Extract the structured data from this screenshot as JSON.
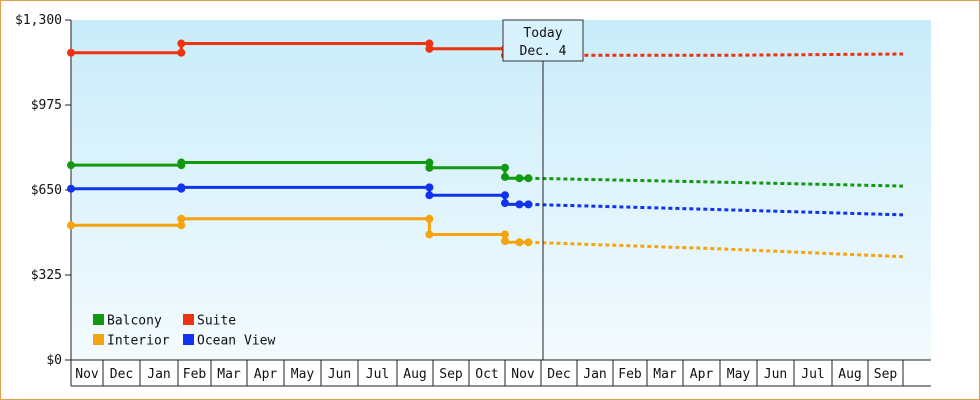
{
  "chart_data": {
    "type": "line",
    "today_label": "Today",
    "today_date": "Dec. 4",
    "months": [
      "Nov",
      "Dec",
      "Jan",
      "Feb",
      "Mar",
      "Apr",
      "May",
      "Jun",
      "Jul",
      "Aug",
      "Sep",
      "Oct",
      "Nov",
      "Dec",
      "Jan",
      "Feb",
      "Mar",
      "Apr",
      "May",
      "Jun",
      "Jul",
      "Aug",
      "Sep"
    ],
    "yticks": [
      {
        "value": 0,
        "label": "$0"
      },
      {
        "value": 325,
        "label": "$325"
      },
      {
        "value": 650,
        "label": "$650"
      },
      {
        "value": 975,
        "label": "$975"
      },
      {
        "value": 1300,
        "label": "$1,300"
      }
    ],
    "ylim": [
      0,
      1300
    ],
    "legend": [
      {
        "name": "Balcony",
        "color": "#119911"
      },
      {
        "name": "Suite",
        "color": "#ee3311"
      },
      {
        "name": "Interior",
        "color": "#f5a40f"
      },
      {
        "name": "Ocean View",
        "color": "#1133ee"
      }
    ],
    "series": [
      {
        "name": "Suite",
        "color": "#ee3311",
        "history": [
          [
            0,
            1175
          ],
          [
            3.1,
            1175
          ],
          [
            3.1,
            1210
          ],
          [
            9.9,
            1210
          ],
          [
            9.9,
            1190
          ],
          [
            12.0,
            1190
          ],
          [
            12.0,
            1165
          ],
          [
            12.65,
            1165
          ]
        ],
        "markers": [
          [
            0,
            1175
          ],
          [
            3.1,
            1175
          ],
          [
            3.1,
            1210
          ],
          [
            9.9,
            1210
          ],
          [
            9.9,
            1190
          ],
          [
            12.0,
            1190
          ],
          [
            12.0,
            1165
          ],
          [
            12.65,
            1165
          ]
        ],
        "forecast": [
          [
            12.65,
            1165
          ],
          [
            18.0,
            1165
          ],
          [
            23.0,
            1170
          ]
        ]
      },
      {
        "name": "Balcony",
        "color": "#119911",
        "history": [
          [
            0,
            745
          ],
          [
            3.1,
            745
          ],
          [
            3.1,
            755
          ],
          [
            9.9,
            755
          ],
          [
            9.9,
            735
          ],
          [
            12.0,
            735
          ],
          [
            12.0,
            695
          ],
          [
            12.65,
            695
          ]
        ],
        "markers": [
          [
            0,
            745
          ],
          [
            3.1,
            745
          ],
          [
            3.1,
            755
          ],
          [
            9.9,
            755
          ],
          [
            9.9,
            735
          ],
          [
            12.0,
            735
          ],
          [
            12.0,
            700
          ],
          [
            12.4,
            695
          ],
          [
            12.65,
            695
          ]
        ],
        "forecast": [
          [
            12.65,
            695
          ],
          [
            18.0,
            680
          ],
          [
            23.0,
            665
          ]
        ]
      },
      {
        "name": "Ocean View",
        "color": "#1133ee",
        "history": [
          [
            0,
            655
          ],
          [
            3.1,
            655
          ],
          [
            3.1,
            660
          ],
          [
            9.9,
            660
          ],
          [
            9.9,
            630
          ],
          [
            12.0,
            630
          ],
          [
            12.0,
            595
          ],
          [
            12.65,
            595
          ]
        ],
        "markers": [
          [
            0,
            655
          ],
          [
            3.1,
            655
          ],
          [
            3.1,
            660
          ],
          [
            9.9,
            660
          ],
          [
            9.9,
            630
          ],
          [
            12.0,
            630
          ],
          [
            12.0,
            600
          ],
          [
            12.4,
            595
          ],
          [
            12.65,
            595
          ]
        ],
        "forecast": [
          [
            12.65,
            595
          ],
          [
            18.0,
            575
          ],
          [
            23.0,
            555
          ]
        ]
      },
      {
        "name": "Interior",
        "color": "#f5a40f",
        "history": [
          [
            0,
            515
          ],
          [
            3.1,
            515
          ],
          [
            3.1,
            540
          ],
          [
            9.9,
            540
          ],
          [
            9.9,
            480
          ],
          [
            12.0,
            480
          ],
          [
            12.0,
            450
          ],
          [
            12.65,
            450
          ]
        ],
        "markers": [
          [
            0,
            515
          ],
          [
            3.1,
            515
          ],
          [
            3.1,
            540
          ],
          [
            9.9,
            540
          ],
          [
            9.9,
            480
          ],
          [
            12.0,
            480
          ],
          [
            12.0,
            455
          ],
          [
            12.4,
            450
          ],
          [
            12.65,
            450
          ]
        ],
        "forecast": [
          [
            12.65,
            450
          ],
          [
            18.0,
            425
          ],
          [
            23.0,
            395
          ]
        ]
      }
    ]
  }
}
